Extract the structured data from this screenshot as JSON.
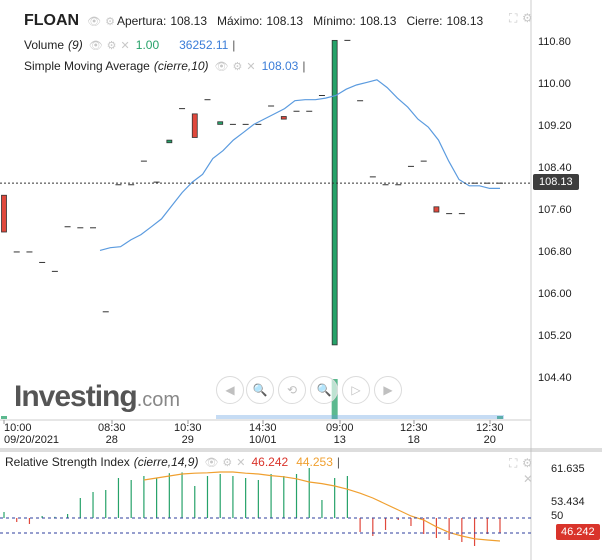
{
  "header": {
    "symbol": "FLOAN",
    "ohlc": [
      {
        "label": "Apertura:",
        "value": "108.13"
      },
      {
        "label": "Máximo:",
        "value": "108.13"
      },
      {
        "label": "Mínimo:",
        "value": "108.13"
      },
      {
        "label": "Cierre:",
        "value": "108.13"
      }
    ]
  },
  "volume_legend": {
    "label": "Volume",
    "params": "(9)",
    "value1": "1.00",
    "value2": "36252.11"
  },
  "sma_legend": {
    "label": "Simple Moving Average",
    "params": "(cierre,10)",
    "value": "108.03"
  },
  "rsi_legend": {
    "label": "Relative Strength Index",
    "params": "(cierre,14,9)",
    "value1": "46.242",
    "value2": "44.253"
  },
  "price_axis": {
    "ticks": [
      "110.80",
      "110.00",
      "109.20",
      "108.40",
      "107.60",
      "106.80",
      "106.00",
      "105.20",
      "104.40"
    ],
    "current": "108.13"
  },
  "rsi_axis": {
    "ticks": [
      "61.635",
      "53.434",
      "50"
    ],
    "current": "46.242"
  },
  "time_axis": [
    {
      "top": "10:00",
      "bottom": "09/20/2021"
    },
    {
      "top": "08:30",
      "bottom": "28"
    },
    {
      "top": "10:30",
      "bottom": "29"
    },
    {
      "top": "14:30",
      "bottom": "10/01"
    },
    {
      "top": "09:00",
      "bottom": "13"
    },
    {
      "top": "12:30",
      "bottom": "18"
    },
    {
      "top": "12:30",
      "bottom": "20"
    }
  ],
  "branding": {
    "logo_text": "Investing",
    "logo_suffix": ".com"
  },
  "colors": {
    "up": "#26a269",
    "down": "#e0483c",
    "sma": "#5b9bdf",
    "rsi_signal": "#f0a030",
    "grid": "#e8e8e8",
    "sma_legend": "#3b7dd8",
    "volume_legend": "#26a269"
  },
  "chart_data": [
    {
      "type": "candlestick",
      "title": "FLOAN",
      "ylim": [
        104.0,
        111.0
      ],
      "candles": [
        {
          "o": 107.9,
          "h": 107.9,
          "l": 107.2,
          "c": 107.2
        },
        {
          "o": 106.82,
          "h": 106.82,
          "l": 106.82,
          "c": 106.82
        },
        {
          "o": 106.82,
          "h": 106.82,
          "l": 106.82,
          "c": 106.82
        },
        {
          "o": 106.62,
          "h": 106.62,
          "l": 106.62,
          "c": 106.62
        },
        {
          "o": 106.45,
          "h": 106.45,
          "l": 106.45,
          "c": 106.45
        },
        {
          "o": 107.3,
          "h": 107.3,
          "l": 107.3,
          "c": 107.3
        },
        {
          "o": 107.28,
          "h": 107.28,
          "l": 107.28,
          "c": 107.28
        },
        {
          "o": 107.28,
          "h": 107.28,
          "l": 107.28,
          "c": 107.28
        },
        {
          "o": 105.68,
          "h": 105.68,
          "l": 105.68,
          "c": 105.68
        },
        {
          "o": 108.1,
          "h": 108.1,
          "l": 108.1,
          "c": 108.1
        },
        {
          "o": 108.1,
          "h": 108.1,
          "l": 108.1,
          "c": 108.1
        },
        {
          "o": 108.55,
          "h": 108.55,
          "l": 108.55,
          "c": 108.55
        },
        {
          "o": 108.15,
          "h": 108.15,
          "l": 108.15,
          "c": 108.15
        },
        {
          "o": 108.9,
          "h": 108.95,
          "l": 108.9,
          "c": 108.95
        },
        {
          "o": 109.55,
          "h": 109.55,
          "l": 109.55,
          "c": 109.55
        },
        {
          "o": 109.45,
          "h": 109.45,
          "l": 109.0,
          "c": 109.0
        },
        {
          "o": 109.72,
          "h": 109.72,
          "l": 109.72,
          "c": 109.72
        },
        {
          "o": 109.25,
          "h": 109.3,
          "l": 109.25,
          "c": 109.3
        },
        {
          "o": 109.25,
          "h": 109.25,
          "l": 109.25,
          "c": 109.25
        },
        {
          "o": 109.25,
          "h": 109.25,
          "l": 109.25,
          "c": 109.25
        },
        {
          "o": 109.25,
          "h": 109.25,
          "l": 109.25,
          "c": 109.25
        },
        {
          "o": 109.6,
          "h": 109.6,
          "l": 109.6,
          "c": 109.6
        },
        {
          "o": 109.4,
          "h": 109.4,
          "l": 109.35,
          "c": 109.35
        },
        {
          "o": 109.5,
          "h": 109.5,
          "l": 109.5,
          "c": 109.5
        },
        {
          "o": 109.5,
          "h": 109.5,
          "l": 109.5,
          "c": 109.5
        },
        {
          "o": 109.8,
          "h": 109.8,
          "l": 109.8,
          "c": 109.8
        },
        {
          "o": 105.05,
          "h": 110.85,
          "l": 105.05,
          "c": 110.85
        },
        {
          "o": 110.85,
          "h": 110.85,
          "l": 110.85,
          "c": 110.85
        },
        {
          "o": 109.7,
          "h": 109.7,
          "l": 109.7,
          "c": 109.7
        },
        {
          "o": 108.25,
          "h": 108.25,
          "l": 108.25,
          "c": 108.25
        },
        {
          "o": 108.1,
          "h": 108.1,
          "l": 108.1,
          "c": 108.1
        },
        {
          "o": 108.1,
          "h": 108.1,
          "l": 108.1,
          "c": 108.1
        },
        {
          "o": 108.45,
          "h": 108.45,
          "l": 108.45,
          "c": 108.45
        },
        {
          "o": 108.55,
          "h": 108.55,
          "l": 108.55,
          "c": 108.55
        },
        {
          "o": 107.68,
          "h": 107.68,
          "l": 107.58,
          "c": 107.58
        },
        {
          "o": 107.55,
          "h": 107.55,
          "l": 107.55,
          "c": 107.55
        },
        {
          "o": 107.55,
          "h": 107.55,
          "l": 107.55,
          "c": 107.55
        },
        {
          "o": 108.13,
          "h": 108.13,
          "l": 108.13,
          "c": 108.13
        },
        {
          "o": 108.13,
          "h": 108.13,
          "l": 108.13,
          "c": 108.13
        },
        {
          "o": 108.13,
          "h": 108.13,
          "l": 108.13,
          "c": 108.13
        }
      ],
      "sma": [
        106.85,
        106.9,
        106.92,
        107.05,
        107.15,
        107.3,
        107.45,
        107.7,
        107.95,
        108.15,
        108.3,
        108.6,
        108.75,
        108.95,
        109.1,
        109.25,
        109.35,
        109.45,
        109.55,
        109.7,
        109.72,
        109.72,
        109.75,
        109.8,
        109.92,
        110.0,
        110.05,
        110.1,
        109.95,
        109.75,
        109.58,
        109.35,
        109.2,
        108.95,
        108.55,
        108.2,
        108.08,
        108.08,
        108.03,
        108.03
      ],
      "sma_start_index": 10
    },
    {
      "type": "bar",
      "title": "Volume",
      "values": [
        1,
        0,
        0,
        0,
        0,
        0,
        0,
        0,
        0,
        0,
        0,
        0,
        0,
        0,
        0,
        0,
        0,
        0,
        0,
        0,
        0,
        0,
        0,
        0,
        0,
        0,
        36252.11,
        0,
        0,
        0,
        0,
        0,
        0,
        0,
        0,
        0,
        0,
        0,
        0,
        1
      ]
    },
    {
      "type": "bar",
      "title": "Relative Strength Index",
      "ylim": [
        40,
        64
      ],
      "values": [
        51.5,
        49.0,
        48.5,
        50.5,
        50.3,
        51.0,
        55.0,
        56.5,
        57.0,
        60.0,
        59.5,
        60.5,
        60.0,
        61.2,
        61.4,
        58.0,
        60.5,
        61.0,
        60.5,
        60.0,
        59.5,
        61.0,
        60.5,
        61.0,
        62.5,
        54.5,
        60.0,
        60.5,
        46.5,
        45.5,
        47.0,
        49.5,
        48.0,
        46.0,
        45.0,
        44.5,
        44.0,
        43.0,
        46.0,
        46.242
      ],
      "signal": [
        59.5,
        60.0,
        60.5,
        61.0,
        61.2,
        61.3,
        61.5,
        61.5,
        61.2,
        61.0,
        60.6,
        60.3,
        59.8,
        59.0,
        58.6,
        58.0,
        57.2,
        56.2,
        55.0,
        53.5,
        52.0,
        50.5,
        49.5,
        47.8,
        46.4,
        45.5,
        44.8,
        44.5,
        44.253
      ],
      "signal_start_index": 11,
      "threshold": 50
    }
  ]
}
